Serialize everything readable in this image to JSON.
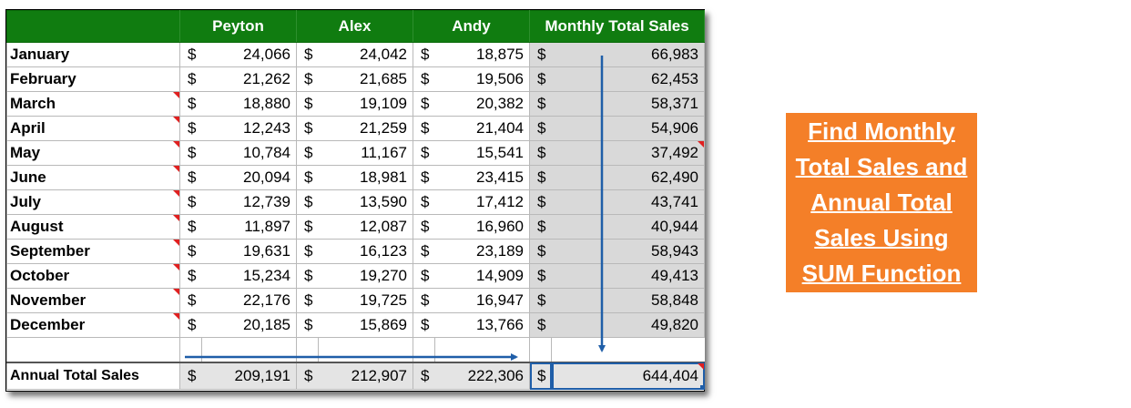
{
  "columns": [
    "",
    "Peyton",
    "Alex",
    "Andy",
    "Monthly Total Sales"
  ],
  "currency_symbol": "$",
  "rows": [
    {
      "month": "January",
      "peyton": "24,066",
      "alex": "24,042",
      "andy": "18,875",
      "total": "66,983"
    },
    {
      "month": "February",
      "peyton": "21,262",
      "alex": "21,685",
      "andy": "19,506",
      "total": "62,453"
    },
    {
      "month": "March",
      "peyton": "18,880",
      "alex": "19,109",
      "andy": "20,382",
      "total": "58,371"
    },
    {
      "month": "April",
      "peyton": "12,243",
      "alex": "21,259",
      "andy": "21,404",
      "total": "54,906"
    },
    {
      "month": "May",
      "peyton": "10,784",
      "alex": "11,167",
      "andy": "15,541",
      "total": "37,492"
    },
    {
      "month": "June",
      "peyton": "20,094",
      "alex": "18,981",
      "andy": "23,415",
      "total": "62,490"
    },
    {
      "month": "July",
      "peyton": "12,739",
      "alex": "13,590",
      "andy": "17,412",
      "total": "43,741"
    },
    {
      "month": "August",
      "peyton": "11,897",
      "alex": "12,087",
      "andy": "16,960",
      "total": "40,944"
    },
    {
      "month": "September",
      "peyton": "19,631",
      "alex": "16,123",
      "andy": "23,189",
      "total": "58,943"
    },
    {
      "month": "October",
      "peyton": "15,234",
      "alex": "19,270",
      "andy": "14,909",
      "total": "49,413"
    },
    {
      "month": "November",
      "peyton": "22,176",
      "alex": "19,725",
      "andy": "16,947",
      "total": "58,848"
    },
    {
      "month": "December",
      "peyton": "20,185",
      "alex": "15,869",
      "andy": "13,766",
      "total": "49,820"
    }
  ],
  "annual": {
    "label": "Annual Total Sales",
    "peyton": "209,191",
    "alex": "212,907",
    "andy": "222,306",
    "total": "644,404"
  },
  "banner": {
    "text": "Find Monthly\nTotal Sales and\nAnnual Total\nSales Using\nSUM Function"
  },
  "colors": {
    "header_green": "#107c10",
    "total_column_gray": "#d9d9d9",
    "arrow_blue": "#1f5ea8",
    "banner_orange": "#f47f28",
    "comment_marker_red": "#e02020"
  }
}
